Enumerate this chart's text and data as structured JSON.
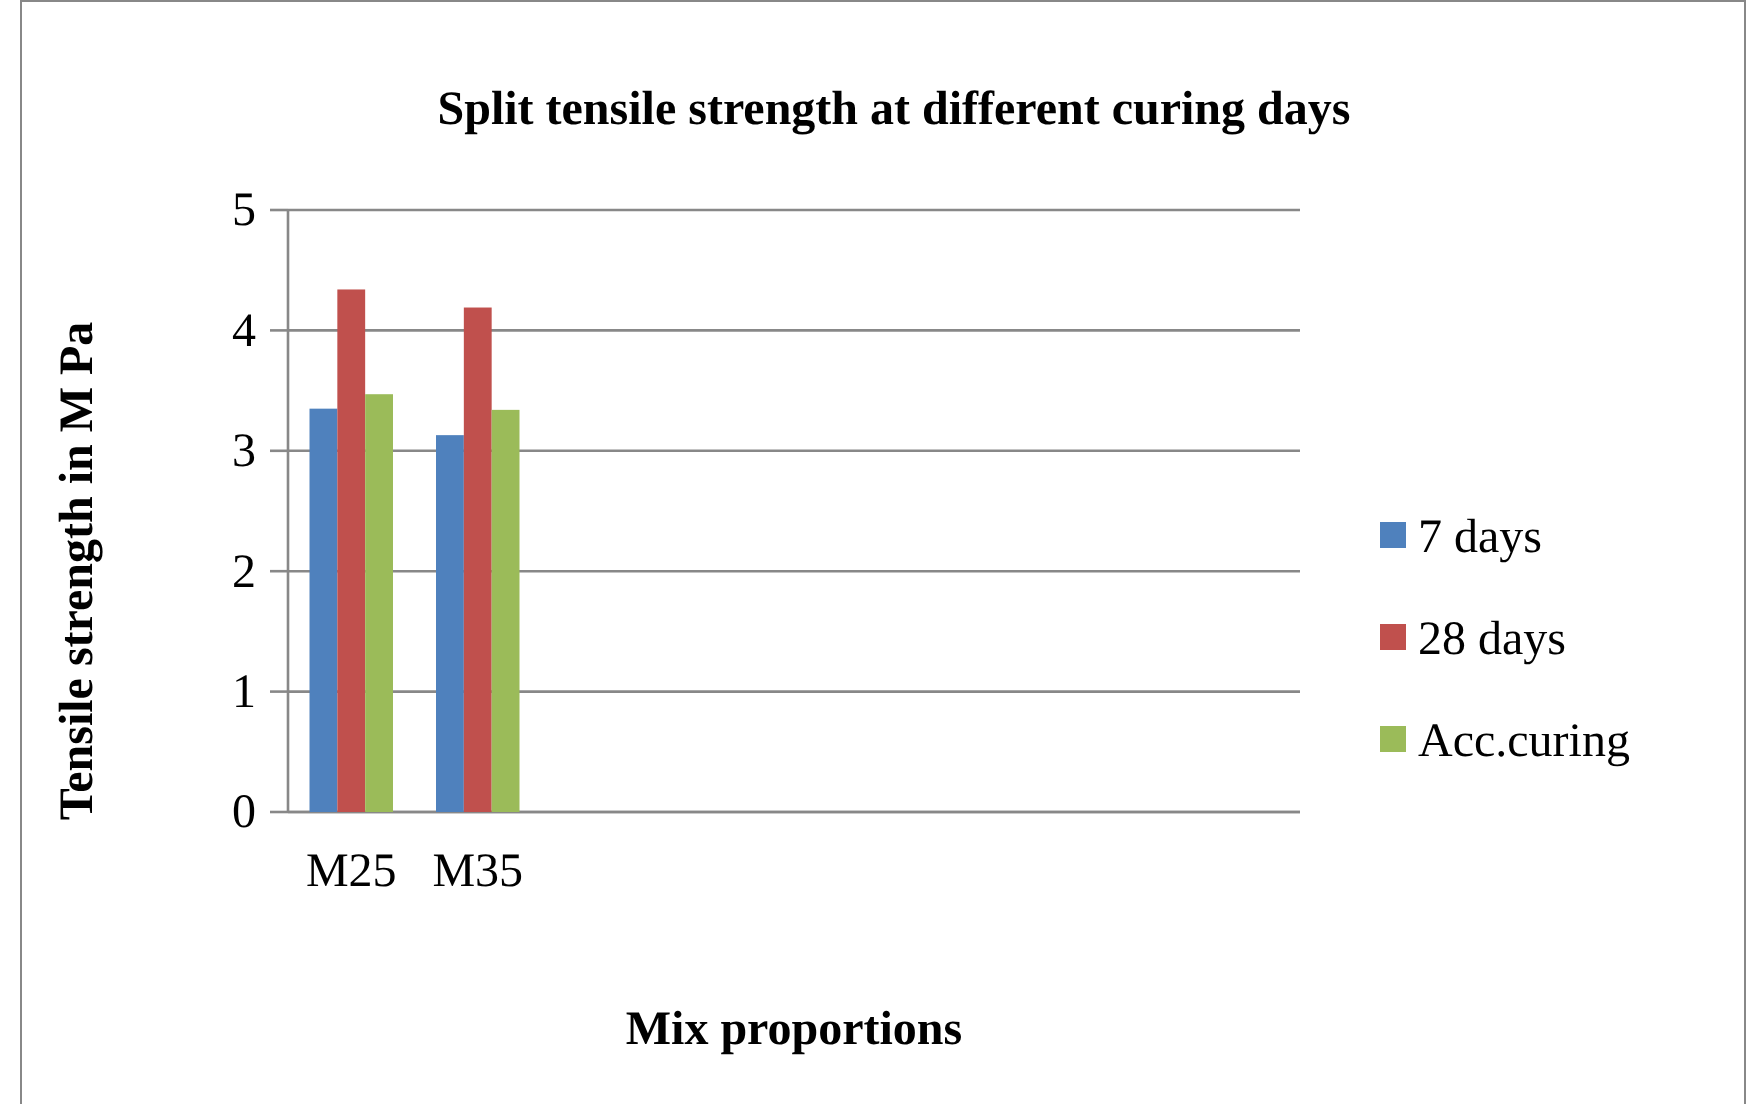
{
  "chart_data": {
    "type": "bar",
    "title": "Split tensile strength at different curing days",
    "xlabel": "Mix proportions",
    "ylabel": "Tensile  strength  in M Pa",
    "categories": [
      "M25",
      "M35",
      null,
      null,
      null,
      null,
      null,
      null
    ],
    "series": [
      {
        "name": "7 days",
        "color": "#4f81bd",
        "values": [
          3.35,
          3.13,
          null,
          null,
          null,
          null,
          null,
          null
        ]
      },
      {
        "name": "28 days",
        "color": "#c0504d",
        "values": [
          4.34,
          4.19,
          null,
          null,
          null,
          null,
          null,
          null
        ]
      },
      {
        "name": "Acc.curing",
        "color": "#9bbb59",
        "values": [
          3.47,
          3.34,
          null,
          null,
          null,
          null,
          null,
          null
        ]
      }
    ],
    "ylim": [
      0,
      5
    ],
    "yticks": [
      0,
      1,
      2,
      3,
      4,
      5
    ],
    "grid": "y",
    "legend": "right"
  }
}
